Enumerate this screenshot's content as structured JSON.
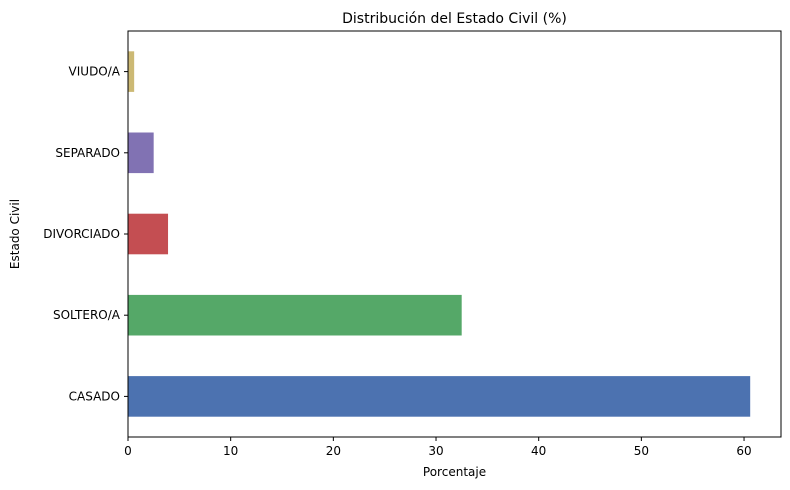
{
  "chart_data": {
    "type": "bar",
    "orientation": "horizontal",
    "title": "Distribución del Estado Civil (%)",
    "xlabel": "Porcentaje",
    "ylabel": "Estado Civil",
    "categories": [
      "CASADO",
      "SOLTERO/A",
      "DIVORCIADO",
      "SEPARADO",
      "VIUDO/A"
    ],
    "values": [
      60.6,
      32.5,
      3.9,
      2.5,
      0.6
    ],
    "colors": [
      "#4c72b0",
      "#55a868",
      "#c44e52",
      "#8172b3",
      "#ccb974"
    ],
    "xlim": [
      0,
      63.6
    ],
    "xticks": [
      0,
      10,
      20,
      30,
      40,
      50,
      60
    ],
    "grid": false,
    "legend": "none"
  }
}
